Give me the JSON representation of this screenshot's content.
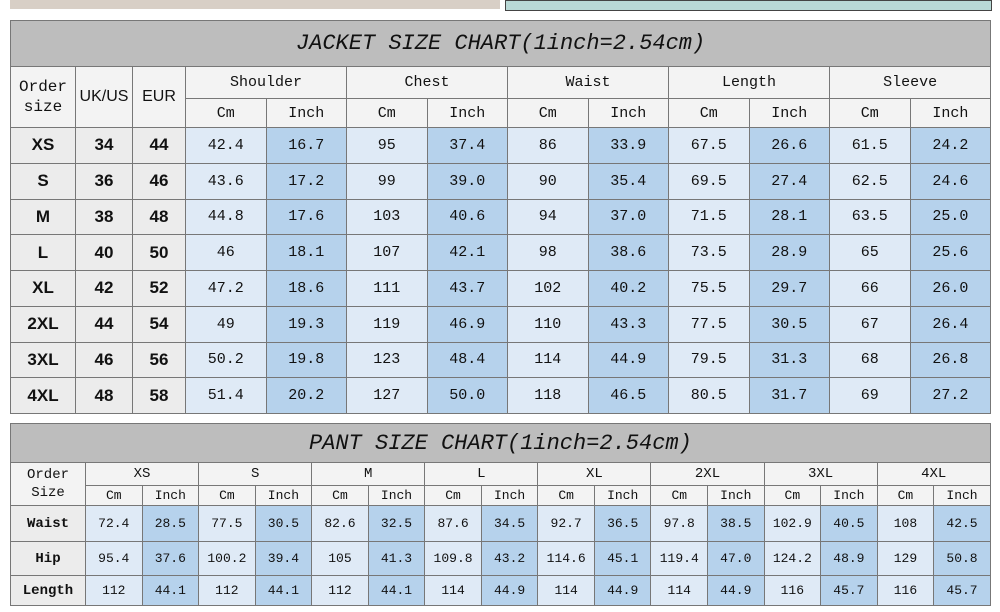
{
  "jacket": {
    "title": "JACKET SIZE CHART(1inch=2.54cm)",
    "headers": [
      "Order size",
      "UK/US",
      "EUR"
    ],
    "groups": [
      "Shoulder",
      "Chest",
      "Waist",
      "Length",
      "Sleeve"
    ],
    "units": [
      "Cm",
      "Inch",
      "Cm",
      "Inch",
      "Cm",
      "Inch",
      "Cm",
      "Inch",
      "Cm",
      "Inch"
    ],
    "rows": [
      [
        "XS",
        "34",
        "44",
        "42.4",
        "16.7",
        "95",
        "37.4",
        "86",
        "33.9",
        "67.5",
        "26.6",
        "61.5",
        "24.2"
      ],
      [
        "S",
        "36",
        "46",
        "43.6",
        "17.2",
        "99",
        "39.0",
        "90",
        "35.4",
        "69.5",
        "27.4",
        "62.5",
        "24.6"
      ],
      [
        "M",
        "38",
        "48",
        "44.8",
        "17.6",
        "103",
        "40.6",
        "94",
        "37.0",
        "71.5",
        "28.1",
        "63.5",
        "25.0"
      ],
      [
        "L",
        "40",
        "50",
        "46",
        "18.1",
        "107",
        "42.1",
        "98",
        "38.6",
        "73.5",
        "28.9",
        "65",
        "25.6"
      ],
      [
        "XL",
        "42",
        "52",
        "47.2",
        "18.6",
        "111",
        "43.7",
        "102",
        "40.2",
        "75.5",
        "29.7",
        "66",
        "26.0"
      ],
      [
        "2XL",
        "44",
        "54",
        "49",
        "19.3",
        "119",
        "46.9",
        "110",
        "43.3",
        "77.5",
        "30.5",
        "67",
        "26.4"
      ],
      [
        "3XL",
        "46",
        "56",
        "50.2",
        "19.8",
        "123",
        "48.4",
        "114",
        "44.9",
        "79.5",
        "31.3",
        "68",
        "26.8"
      ],
      [
        "4XL",
        "48",
        "58",
        "51.4",
        "20.2",
        "127",
        "50.0",
        "118",
        "46.5",
        "80.5",
        "31.7",
        "69",
        "27.2"
      ]
    ]
  },
  "pant": {
    "title": "PANT SIZE  CHART(1inch=2.54cm)",
    "header": "Order Size",
    "sizes": [
      "XS",
      "S",
      "M",
      "L",
      "XL",
      "2XL",
      "3XL",
      "4XL"
    ],
    "units": [
      "Cm",
      "Inch",
      "Cm",
      "Inch",
      "Cm",
      "Inch",
      "Cm",
      "Inch",
      "Cm",
      "Inch",
      "Cm",
      "Inch",
      "Cm",
      "Inch",
      "Cm",
      "Inch"
    ],
    "rows": [
      [
        "Waist",
        "72.4",
        "28.5",
        "77.5",
        "30.5",
        "82.6",
        "32.5",
        "87.6",
        "34.5",
        "92.7",
        "36.5",
        "97.8",
        "38.5",
        "102.9",
        "40.5",
        "108",
        "42.5"
      ],
      [
        "Hip",
        "95.4",
        "37.6",
        "100.2",
        "39.4",
        "105",
        "41.3",
        "109.8",
        "43.2",
        "114.6",
        "45.1",
        "119.4",
        "47.0",
        "124.2",
        "48.9",
        "129",
        "50.8"
      ],
      [
        "Length",
        "112",
        "44.1",
        "112",
        "44.1",
        "112",
        "44.1",
        "114",
        "44.9",
        "114",
        "44.9",
        "114",
        "44.9",
        "116",
        "45.7",
        "116",
        "45.7"
      ]
    ]
  }
}
